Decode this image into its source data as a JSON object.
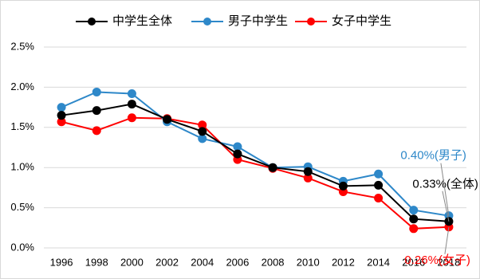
{
  "chart_data": {
    "type": "line",
    "categories": [
      "1996",
      "1998",
      "2000",
      "2002",
      "2004",
      "2006",
      "2008",
      "2010",
      "2012",
      "2014",
      "2016",
      "2018"
    ],
    "series": [
      {
        "name": "中学生全体",
        "color": "#000000",
        "values": [
          1.65,
          1.71,
          1.79,
          1.6,
          1.45,
          1.17,
          1.0,
          0.95,
          0.77,
          0.78,
          0.36,
          0.33
        ],
        "end_label": "0.33%(全体)"
      },
      {
        "name": "男子中学生",
        "color": "#2e88c9",
        "values": [
          1.75,
          1.94,
          1.92,
          1.57,
          1.36,
          1.26,
          1.0,
          1.01,
          0.83,
          0.92,
          0.47,
          0.4
        ],
        "end_label": "0.40%(男子)"
      },
      {
        "name": "女子中学生",
        "color": "#ff0000",
        "values": [
          1.57,
          1.46,
          1.62,
          1.61,
          1.53,
          1.1,
          0.99,
          0.87,
          0.7,
          0.62,
          0.24,
          0.26
        ],
        "end_label": "0.26%(女子)"
      }
    ],
    "ylim": [
      0,
      2.5
    ],
    "yticks": [
      {
        "value": 0,
        "label": "0.0%"
      },
      {
        "value": 0.5,
        "label": "0.5%"
      },
      {
        "value": 1,
        "label": "1.0%"
      },
      {
        "value": 1.5,
        "label": "1.5%"
      },
      {
        "value": 2,
        "label": "2.0%"
      },
      {
        "value": 2.5,
        "label": "2.5%"
      }
    ],
    "grid": true,
    "legend": "top"
  }
}
